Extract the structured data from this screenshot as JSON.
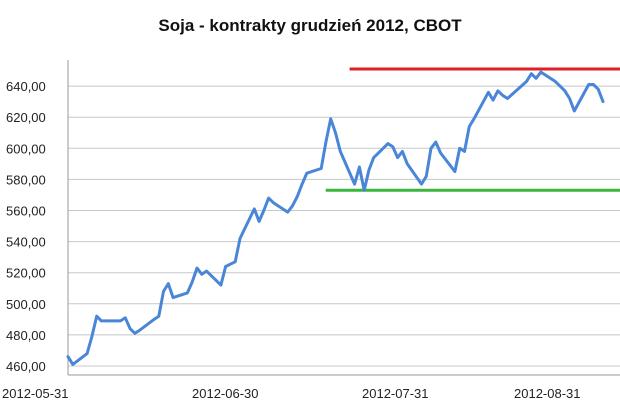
{
  "chart_data": {
    "type": "line",
    "title": "Soja - kontrakty grudzień 2012, CBOT",
    "xlabel": "",
    "ylabel": "",
    "ylim": [
      460,
      650
    ],
    "y_ticks": [
      "460,00",
      "480,00",
      "500,00",
      "520,00",
      "540,00",
      "560,00",
      "580,00",
      "600,00",
      "620,00",
      "640,00"
    ],
    "x_ticks": [
      "2012-05-31",
      "2012-06-30",
      "2012-07-31",
      "2012-08-31"
    ],
    "grid": "horizontal",
    "series": [
      {
        "color": "#4a86d8",
        "points": [
          [
            "2012-05-31",
            466
          ],
          [
            "2012-06-01",
            461
          ],
          [
            "2012-06-04",
            468
          ],
          [
            "2012-06-05",
            479
          ],
          [
            "2012-06-06",
            492
          ],
          [
            "2012-06-07",
            489
          ],
          [
            "2012-06-08",
            489
          ],
          [
            "2012-06-11",
            489
          ],
          [
            "2012-06-12",
            491
          ],
          [
            "2012-06-13",
            484
          ],
          [
            "2012-06-14",
            481
          ],
          [
            "2012-06-15",
            483
          ],
          [
            "2012-06-18",
            490
          ],
          [
            "2012-06-19",
            492
          ],
          [
            "2012-06-20",
            508
          ],
          [
            "2012-06-21",
            513
          ],
          [
            "2012-06-22",
            504
          ],
          [
            "2012-06-25",
            507
          ],
          [
            "2012-06-26",
            514
          ],
          [
            "2012-06-27",
            523
          ],
          [
            "2012-06-28",
            519
          ],
          [
            "2012-06-29",
            521
          ],
          [
            "2012-07-02",
            512
          ],
          [
            "2012-07-03",
            524
          ],
          [
            "2012-07-05",
            527
          ],
          [
            "2012-07-06",
            542
          ],
          [
            "2012-07-09",
            561
          ],
          [
            "2012-07-10",
            553
          ],
          [
            "2012-07-11",
            560
          ],
          [
            "2012-07-12",
            568
          ],
          [
            "2012-07-13",
            565
          ],
          [
            "2012-07-16",
            559
          ],
          [
            "2012-07-17",
            563
          ],
          [
            "2012-07-18",
            569
          ],
          [
            "2012-07-19",
            577
          ],
          [
            "2012-07-20",
            584
          ],
          [
            "2012-07-23",
            587
          ],
          [
            "2012-07-24",
            604
          ],
          [
            "2012-07-25",
            619
          ],
          [
            "2012-07-26",
            610
          ],
          [
            "2012-07-27",
            598
          ],
          [
            "2012-07-30",
            577
          ],
          [
            "2012-07-31",
            588
          ],
          [
            "2012-08-01",
            573
          ],
          [
            "2012-08-02",
            586
          ],
          [
            "2012-08-03",
            594
          ],
          [
            "2012-08-06",
            603
          ],
          [
            "2012-08-07",
            601
          ],
          [
            "2012-08-08",
            594
          ],
          [
            "2012-08-09",
            598
          ],
          [
            "2012-08-10",
            590
          ],
          [
            "2012-08-13",
            577
          ],
          [
            "2012-08-14",
            582
          ],
          [
            "2012-08-15",
            600
          ],
          [
            "2012-08-16",
            604
          ],
          [
            "2012-08-17",
            597
          ],
          [
            "2012-08-20",
            585
          ],
          [
            "2012-08-21",
            600
          ],
          [
            "2012-08-22",
            598
          ],
          [
            "2012-08-23",
            614
          ],
          [
            "2012-08-24",
            619
          ],
          [
            "2012-08-27",
            636
          ],
          [
            "2012-08-28",
            631
          ],
          [
            "2012-08-29",
            637
          ],
          [
            "2012-08-30",
            634
          ],
          [
            "2012-08-31",
            632
          ],
          [
            "2012-09-04",
            643
          ],
          [
            "2012-09-05",
            648
          ],
          [
            "2012-09-06",
            645
          ],
          [
            "2012-09-07",
            649
          ],
          [
            "2012-09-10",
            643
          ],
          [
            "2012-09-11",
            640
          ],
          [
            "2012-09-12",
            637
          ],
          [
            "2012-09-13",
            632
          ],
          [
            "2012-09-14",
            624
          ],
          [
            "2012-09-17",
            641
          ],
          [
            "2012-09-18",
            641
          ],
          [
            "2012-09-19",
            638
          ],
          [
            "2012-09-20",
            630
          ]
        ]
      }
    ],
    "reference_lines": [
      {
        "color": "#dd1f26",
        "y": 651,
        "x_start": "2012-07-30",
        "x_end": "2012-09-20"
      },
      {
        "color": "#3cb53c",
        "y": 573,
        "x_start": "2012-07-25",
        "x_end": "2012-09-20"
      }
    ]
  }
}
